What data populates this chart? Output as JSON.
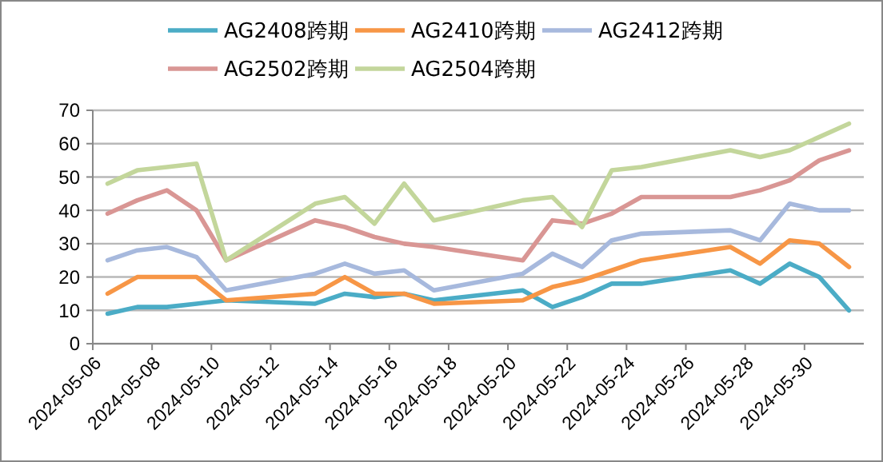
{
  "chart_data": {
    "type": "line",
    "x": [
      "2024-05-06T12:00",
      "2024-05-07T12:00",
      "2024-05-08T12:00",
      "2024-05-09T12:00",
      "2024-05-10T12:00",
      "2024-05-13T12:00",
      "2024-05-14T12:00",
      "2024-05-15T12:00",
      "2024-05-16T12:00",
      "2024-05-17T12:00",
      "2024-05-20T12:00",
      "2024-05-21T12:00",
      "2024-05-22T12:00",
      "2024-05-23T12:00",
      "2024-05-24T12:00",
      "2024-05-27T12:00",
      "2024-05-28T12:00",
      "2024-05-29T12:00",
      "2024-05-30T12:00",
      "2024-05-31T12:00"
    ],
    "series": [
      {
        "name": "AG2408跨期",
        "color": "#4bacc6",
        "values": [
          9,
          11,
          11,
          12,
          13,
          12,
          15,
          14,
          15,
          13,
          16,
          11,
          14,
          18,
          18,
          22,
          18,
          24,
          20,
          10
        ]
      },
      {
        "name": "AG2410跨期",
        "color": "#f79646",
        "values": [
          15,
          20,
          20,
          20,
          13,
          15,
          20,
          15,
          15,
          12,
          13,
          17,
          19,
          22,
          25,
          29,
          24,
          31,
          30,
          23
        ]
      },
      {
        "name": "AG2412跨期",
        "color": "#a7b9dd",
        "values": [
          25,
          28,
          29,
          26,
          16,
          21,
          24,
          21,
          22,
          16,
          21,
          27,
          23,
          31,
          33,
          34,
          31,
          42,
          40,
          40
        ]
      },
      {
        "name": "AG2502跨期",
        "color": "#d99694",
        "values": [
          39,
          43,
          46,
          40,
          25,
          37,
          35,
          32,
          30,
          29,
          25,
          37,
          36,
          39,
          44,
          44,
          46,
          49,
          55,
          58
        ]
      },
      {
        "name": "AG2504跨期",
        "color": "#c3d69b",
        "values": [
          48,
          52,
          53,
          54,
          25,
          42,
          44,
          36,
          48,
          37,
          43,
          44,
          35,
          52,
          53,
          58,
          56,
          58,
          62,
          66
        ]
      }
    ],
    "xlim": [
      "2024-05-06",
      "2024-06-01"
    ],
    "xticks": [
      "2024-05-06",
      "2024-05-08",
      "2024-05-10",
      "2024-05-12",
      "2024-05-14",
      "2024-05-16",
      "2024-05-18",
      "2024-05-20",
      "2024-05-22",
      "2024-05-24",
      "2024-05-26",
      "2024-05-28",
      "2024-05-30"
    ],
    "ylim": [
      0,
      70
    ],
    "yticks": [
      0,
      10,
      20,
      30,
      40,
      50,
      60,
      70
    ],
    "grid": "y",
    "legend": "top",
    "marker": "none",
    "line_style": "solid"
  }
}
